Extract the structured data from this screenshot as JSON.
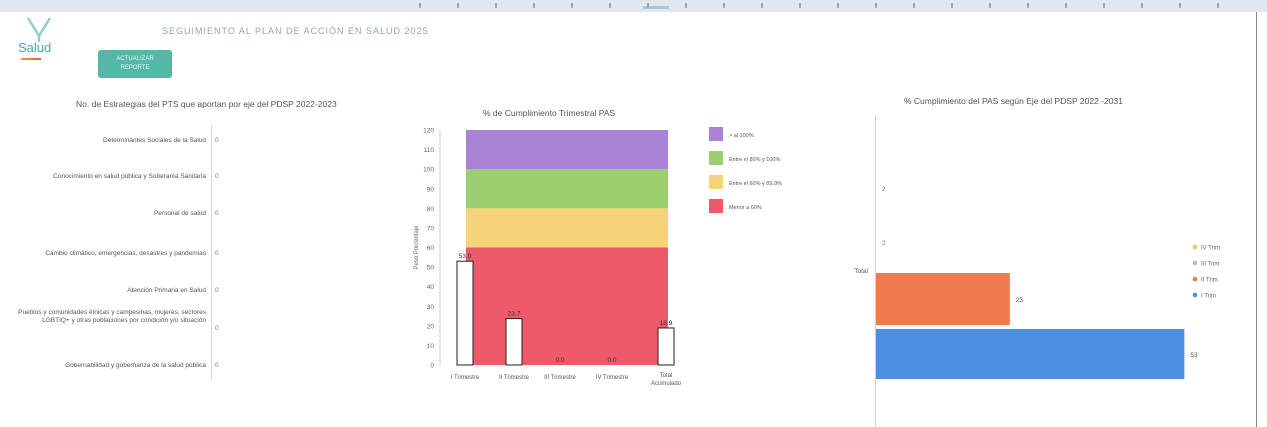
{
  "header": {
    "logo_text": "Salud",
    "title": "SEGUIMIENTO AL PLAN DE ACCIÓN EN SALUD 2025",
    "update_button": "ACTUALIZAR REPORTE"
  },
  "panel1": {
    "title": "No. de Estrategias del PTS que aportan por eje del PDSP 2022-2023",
    "rows": [
      {
        "label": "Determinantes Sociales de la Salud",
        "value": "0"
      },
      {
        "label": "Conocimiento en salud pública y Soberanía Sanitaria",
        "value": "0"
      },
      {
        "label": "Personal de salud",
        "value": "0"
      },
      {
        "label": "Cambio climático, emergencias, desastres y pandemias",
        "value": "0"
      },
      {
        "label": "Atención Primaria en Salud",
        "value": "0"
      },
      {
        "label": "Pueblos y comunidades étnicas y campesinas, mujeres, sectores LGBTIQ+ y otras poblaciones por condición y/o situación",
        "value": "0"
      },
      {
        "label": "Gobernabilidad y gobernanza de la salud pública",
        "value": "0"
      }
    ]
  },
  "chart_data": [
    {
      "type": "bar",
      "title": "% de Cumplimiento Trimestral PAS",
      "ylabel": "Peso Porcentaje",
      "ylim": [
        0,
        120
      ],
      "yticks": [
        0,
        10,
        20,
        30,
        40,
        50,
        60,
        70,
        80,
        90,
        100,
        110,
        120
      ],
      "categories": [
        "I Trimestre",
        "II Trimestre",
        "III Trimestre",
        "IV Trimestre",
        "Total Acumulado"
      ],
      "values": [
        53.0,
        23.7,
        0.0,
        0.0,
        18.9
      ],
      "value_labels": [
        "53.0",
        "23.7",
        "0.0",
        "0.0",
        "18.9"
      ],
      "bands": [
        {
          "from": 0,
          "to": 60,
          "color": "#ef5a6b",
          "label": "Menor a 60%"
        },
        {
          "from": 60,
          "to": 80,
          "color": "#f6d479",
          "label": "Entre el 60% y 89.9%"
        },
        {
          "from": 80,
          "to": 100,
          "color": "#9bce6f",
          "label": "Entre el 80% y 100%"
        },
        {
          "from": 100,
          "to": 120,
          "color": "#a883d6",
          "label": "> al 100%"
        }
      ],
      "legend_position": "right"
    },
    {
      "type": "bar",
      "orientation": "horizontal",
      "title": "% Cumplimiento del PAS según Eje del PDSP 2022 -2031",
      "categories": [
        "",
        "",
        "Total",
        ""
      ],
      "category_labels": [
        "2",
        "2",
        "",
        ""
      ],
      "series": [
        {
          "name": "IV Trim",
          "color": "#f2c94c"
        },
        {
          "name": "III Trim",
          "color": "#b9b9b9"
        },
        {
          "name": "II Trim",
          "color": "#ef7b4d",
          "value": 23
        },
        {
          "name": "I Trim",
          "color": "#4b8fe0",
          "value": 53
        }
      ],
      "value_labels": [
        "23",
        "53"
      ],
      "xlim": [
        0,
        55
      ],
      "legend_position": "right"
    }
  ]
}
